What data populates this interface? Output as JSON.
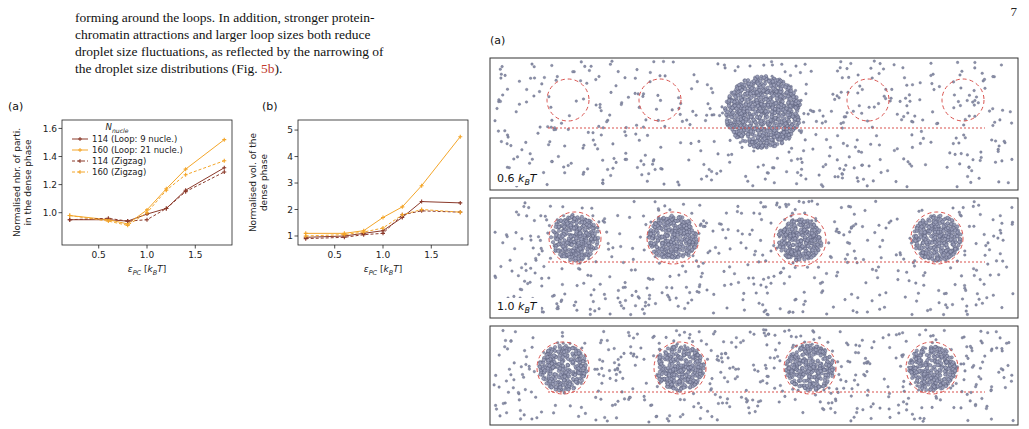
{
  "page": {
    "number": "7",
    "lines": [
      [
        {
          "t": "forming around the loops. In addition, stronger protein-"
        }
      ],
      [
        {
          "t": "chromatin attractions and larger loop sizes both reduce"
        }
      ],
      [
        {
          "t": "droplet size fluctuations, as reflected by the narrowing of"
        }
      ],
      [
        {
          "t": "the droplet size distributions (Fig. "
        },
        {
          "t": "5b",
          "link": true
        },
        {
          "t": ")."
        }
      ]
    ]
  },
  "chart_data": [
    {
      "type": "line",
      "panel": "(a)",
      "y_label": "Normalised nbr. of parti. in the dense phase",
      "x_label": [
        {
          "t": "ε",
          "it": true
        },
        {
          "t": "PC",
          "sub": true,
          "it": true
        },
        {
          "t": " ["
        },
        {
          "t": "k",
          "it": true
        },
        {
          "t": "B",
          "sub": true,
          "it": true
        },
        {
          "t": "T",
          "it": true
        },
        {
          "t": "]"
        }
      ],
      "legend": "upper left",
      "legend_title": [
        {
          "t": "N",
          "it": true
        },
        {
          "t": "nucle",
          "sub": true,
          "it": true
        }
      ],
      "x": [
        0.2,
        0.6,
        0.8,
        1.0,
        1.2,
        1.4,
        1.8
      ],
      "xlim": [
        0.12,
        1.88
      ],
      "xticks": [
        0.5,
        {
          "value": 1,
          "label": "1.0"
        },
        1.5
      ],
      "ylim": [
        0.77,
        1.66
      ],
      "yticks": [
        {
          "value": 1,
          "label": "1.0"
        },
        1.2,
        1.4,
        1.6
      ],
      "series": [
        {
          "name": "114 (Loop: 9 nucle.)",
          "color": "#8b3a2b",
          "line_style": "solid",
          "marker": "plus",
          "values": [
            0.95,
            0.95,
            0.94,
            0.99,
            1.03,
            1.16,
            1.32
          ]
        },
        {
          "name": "160 (Loop: 21 nucle.)",
          "color": "#f4a62a",
          "line_style": "solid",
          "marker": "plus",
          "values": [
            0.98,
            0.95,
            0.92,
            1.02,
            1.17,
            1.31,
            1.52
          ]
        },
        {
          "name": "114 (Zigzag)",
          "color": "#8b3a2b",
          "line_style": "dashed",
          "marker": "plus",
          "values": [
            0.95,
            0.96,
            0.94,
            0.95,
            1.03,
            1.15,
            1.29
          ]
        },
        {
          "name": "160 (Zigzag)",
          "color": "#f4a62a",
          "line_style": "dashed",
          "marker": "plus",
          "values": [
            0.98,
            0.94,
            0.91,
            1.0,
            1.16,
            1.27,
            1.37
          ]
        }
      ]
    },
    {
      "type": "line",
      "panel": "(b)",
      "y_label": "Normalised vol. of the dense phase",
      "x_label": [
        {
          "t": "ε",
          "it": true
        },
        {
          "t": "PC",
          "sub": true,
          "it": true
        },
        {
          "t": " ["
        },
        {
          "t": "k",
          "it": true
        },
        {
          "t": "B",
          "sub": true,
          "it": true
        },
        {
          "t": "T",
          "it": true
        },
        {
          "t": "]"
        }
      ],
      "x": [
        0.2,
        0.6,
        0.8,
        1.0,
        1.2,
        1.4,
        1.8
      ],
      "xlim": [
        0.12,
        1.88
      ],
      "xticks": [
        0.5,
        {
          "value": 1,
          "label": "1.0"
        },
        1.5
      ],
      "ylim": [
        0.66,
        5.38
      ],
      "yticks": [
        1,
        2,
        3,
        4,
        5
      ],
      "series": [
        {
          "name": "114 (Loop: 9 nucle.)",
          "color": "#8b3a2b",
          "line_style": "solid",
          "marker": "plus",
          "values": [
            0.95,
            1.0,
            1.1,
            1.2,
            1.7,
            2.3,
            2.25
          ]
        },
        {
          "name": "160 (Loop: 21 nucle.)",
          "color": "#f4a62a",
          "line_style": "solid",
          "marker": "plus",
          "values": [
            1.1,
            1.1,
            1.2,
            1.7,
            2.1,
            2.9,
            4.75
          ]
        },
        {
          "name": "114 (Zigzag)",
          "color": "#8b3a2b",
          "line_style": "dashed",
          "marker": "plus",
          "values": [
            0.9,
            0.95,
            1.05,
            1.1,
            1.8,
            1.95,
            1.9
          ]
        },
        {
          "name": "160 (Zigzag)",
          "color": "#f4a62a",
          "line_style": "dashed",
          "marker": "plus",
          "values": [
            1.0,
            1.05,
            1.15,
            1.3,
            1.8,
            2.0,
            1.9
          ]
        }
      ]
    }
  ],
  "snapshot_figure": {
    "panel": "(a)",
    "labels": [
      [
        {
          "t": "0.6 "
        },
        {
          "t": "k",
          "it": true
        },
        {
          "t": "B",
          "sub": true,
          "it": true
        },
        {
          "t": "T",
          "it": true
        }
      ],
      [
        {
          "t": "1.0 "
        },
        {
          "t": "k",
          "it": true
        },
        {
          "t": "B",
          "sub": true,
          "it": true
        },
        {
          "t": "T",
          "it": true
        }
      ]
    ]
  }
}
